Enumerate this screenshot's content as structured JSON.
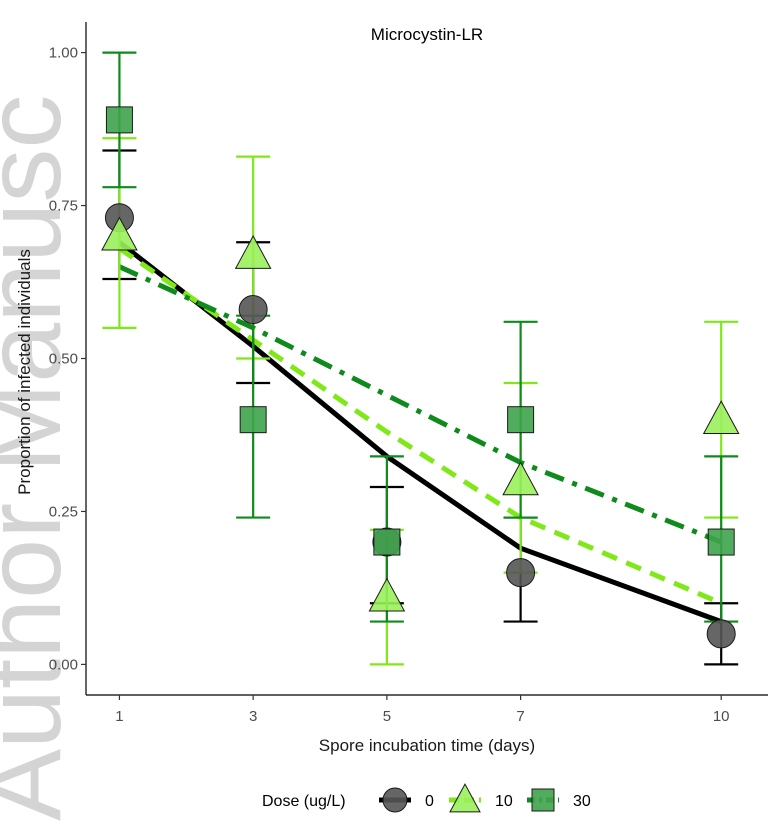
{
  "chart_data": {
    "type": "line",
    "title": "Microcystin-LR",
    "xlabel": "Spore incubation time (days)",
    "ylabel": "Proportion of infected individuals",
    "xlim": [
      0.5,
      10.7
    ],
    "ylim": [
      -0.05,
      1.05
    ],
    "x_ticks": [
      1,
      3,
      5,
      7,
      10
    ],
    "y_ticks": [
      0.0,
      0.25,
      0.5,
      0.75,
      1.0
    ],
    "y_tick_labels": [
      "0.00",
      "0.25",
      "0.50",
      "0.75",
      "1.00"
    ],
    "grid": false,
    "legend": {
      "title": "Dose (ug/L)",
      "position": "bottom"
    },
    "series": [
      {
        "name": "0",
        "color": "#000000",
        "marker": "circle",
        "marker_color": "#555555",
        "line_style": "solid",
        "points": [
          {
            "x": 1,
            "y": 0.73,
            "lo": 0.63,
            "hi": 0.84
          },
          {
            "x": 3,
            "y": 0.58,
            "lo": 0.46,
            "hi": 0.69
          },
          {
            "x": 5,
            "y": 0.2,
            "lo": 0.1,
            "hi": 0.29
          },
          {
            "x": 7,
            "y": 0.15,
            "lo": 0.07,
            "hi": 0.24
          },
          {
            "x": 10,
            "y": 0.05,
            "lo": 0.0,
            "hi": 0.1
          }
        ],
        "fit": [
          {
            "x": 1,
            "y": 0.69
          },
          {
            "x": 3,
            "y": 0.52
          },
          {
            "x": 5,
            "y": 0.34
          },
          {
            "x": 7,
            "y": 0.19
          },
          {
            "x": 10,
            "y": 0.07
          }
        ]
      },
      {
        "name": "10",
        "color": "#7FE817",
        "marker": "triangle",
        "marker_color": "#9AF05C",
        "line_style": "dashed",
        "points": [
          {
            "x": 1,
            "y": 0.7,
            "lo": 0.55,
            "hi": 0.86
          },
          {
            "x": 3,
            "y": 0.67,
            "lo": 0.5,
            "hi": 0.83
          },
          {
            "x": 5,
            "y": 0.11,
            "lo": 0.0,
            "hi": 0.22
          },
          {
            "x": 7,
            "y": 0.3,
            "lo": 0.15,
            "hi": 0.46
          },
          {
            "x": 10,
            "y": 0.4,
            "lo": 0.24,
            "hi": 0.56
          }
        ],
        "fit": [
          {
            "x": 1,
            "y": 0.68
          },
          {
            "x": 3,
            "y": 0.53
          },
          {
            "x": 5,
            "y": 0.38
          },
          {
            "x": 7,
            "y": 0.24
          },
          {
            "x": 10,
            "y": 0.1
          }
        ]
      },
      {
        "name": "30",
        "color": "#0F8A1C",
        "marker": "square",
        "marker_color": "#3FA34D",
        "line_style": "dashdot",
        "points": [
          {
            "x": 1,
            "y": 0.89,
            "lo": 0.78,
            "hi": 1.0
          },
          {
            "x": 3,
            "y": 0.4,
            "lo": 0.24,
            "hi": 0.57
          },
          {
            "x": 5,
            "y": 0.2,
            "lo": 0.07,
            "hi": 0.34
          },
          {
            "x": 7,
            "y": 0.4,
            "lo": 0.24,
            "hi": 0.56
          },
          {
            "x": 10,
            "y": 0.2,
            "lo": 0.07,
            "hi": 0.34
          }
        ],
        "fit": [
          {
            "x": 1,
            "y": 0.65
          },
          {
            "x": 3,
            "y": 0.55
          },
          {
            "x": 5,
            "y": 0.44
          },
          {
            "x": 7,
            "y": 0.33
          },
          {
            "x": 10,
            "y": 0.2
          }
        ]
      }
    ]
  },
  "watermark": {
    "text": "Author Manusc",
    "color": "#d4d4d4"
  }
}
